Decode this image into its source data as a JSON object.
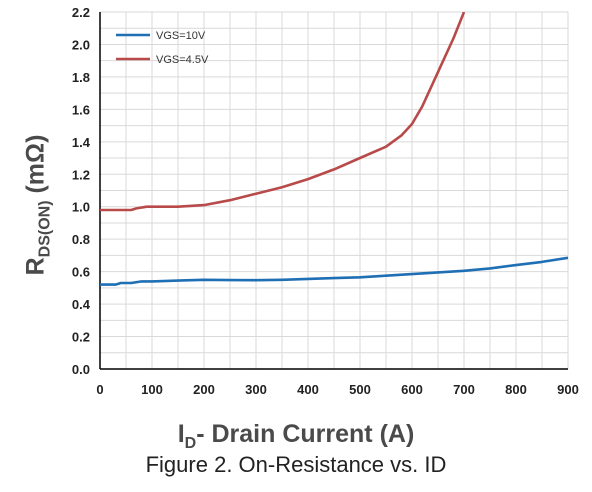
{
  "chart_data": {
    "type": "line",
    "title": "",
    "caption": "Figure 2. On-Resistance vs. ID",
    "xlabel": {
      "main": "I",
      "sub": "D",
      "rest": "- Drain Current (A)"
    },
    "ylabel": {
      "main": "R",
      "sub": "DS(ON)",
      "rest": " (mΩ)"
    },
    "xlim": [
      0,
      900
    ],
    "ylim": [
      0.0,
      2.2
    ],
    "x_ticks": [
      "0",
      "100",
      "200",
      "300",
      "400",
      "500",
      "600",
      "700",
      "800",
      "900"
    ],
    "y_ticks": [
      "0.0",
      "0.2",
      "0.4",
      "0.6",
      "0.8",
      "1.0",
      "1.2",
      "1.4",
      "1.6",
      "1.8",
      "2.0",
      "2.2"
    ],
    "grid": true,
    "legend_position": "top-left",
    "series": [
      {
        "name": "VGS=10V",
        "color": "#1f6fb5",
        "points": [
          [
            0,
            0.52
          ],
          [
            30,
            0.52
          ],
          [
            40,
            0.53
          ],
          [
            60,
            0.53
          ],
          [
            80,
            0.54
          ],
          [
            100,
            0.54
          ],
          [
            150,
            0.545
          ],
          [
            200,
            0.55
          ],
          [
            250,
            0.548
          ],
          [
            300,
            0.547
          ],
          [
            350,
            0.55
          ],
          [
            400,
            0.555
          ],
          [
            450,
            0.56
          ],
          [
            500,
            0.565
          ],
          [
            550,
            0.575
          ],
          [
            600,
            0.585
          ],
          [
            650,
            0.595
          ],
          [
            700,
            0.605
          ],
          [
            750,
            0.62
          ],
          [
            800,
            0.64
          ],
          [
            850,
            0.66
          ],
          [
            900,
            0.685
          ]
        ]
      },
      {
        "name": "VGS=4.5V",
        "color": "#b84a4a",
        "points": [
          [
            0,
            0.98
          ],
          [
            50,
            0.98
          ],
          [
            60,
            0.98
          ],
          [
            70,
            0.99
          ],
          [
            90,
            1.0
          ],
          [
            120,
            1.0
          ],
          [
            150,
            1.0
          ],
          [
            200,
            1.01
          ],
          [
            250,
            1.04
          ],
          [
            300,
            1.08
          ],
          [
            350,
            1.12
          ],
          [
            400,
            1.17
          ],
          [
            450,
            1.23
          ],
          [
            500,
            1.3
          ],
          [
            550,
            1.37
          ],
          [
            580,
            1.44
          ],
          [
            600,
            1.51
          ],
          [
            620,
            1.62
          ],
          [
            640,
            1.76
          ],
          [
            660,
            1.9
          ],
          [
            680,
            2.04
          ],
          [
            700,
            2.2
          ]
        ]
      }
    ]
  }
}
